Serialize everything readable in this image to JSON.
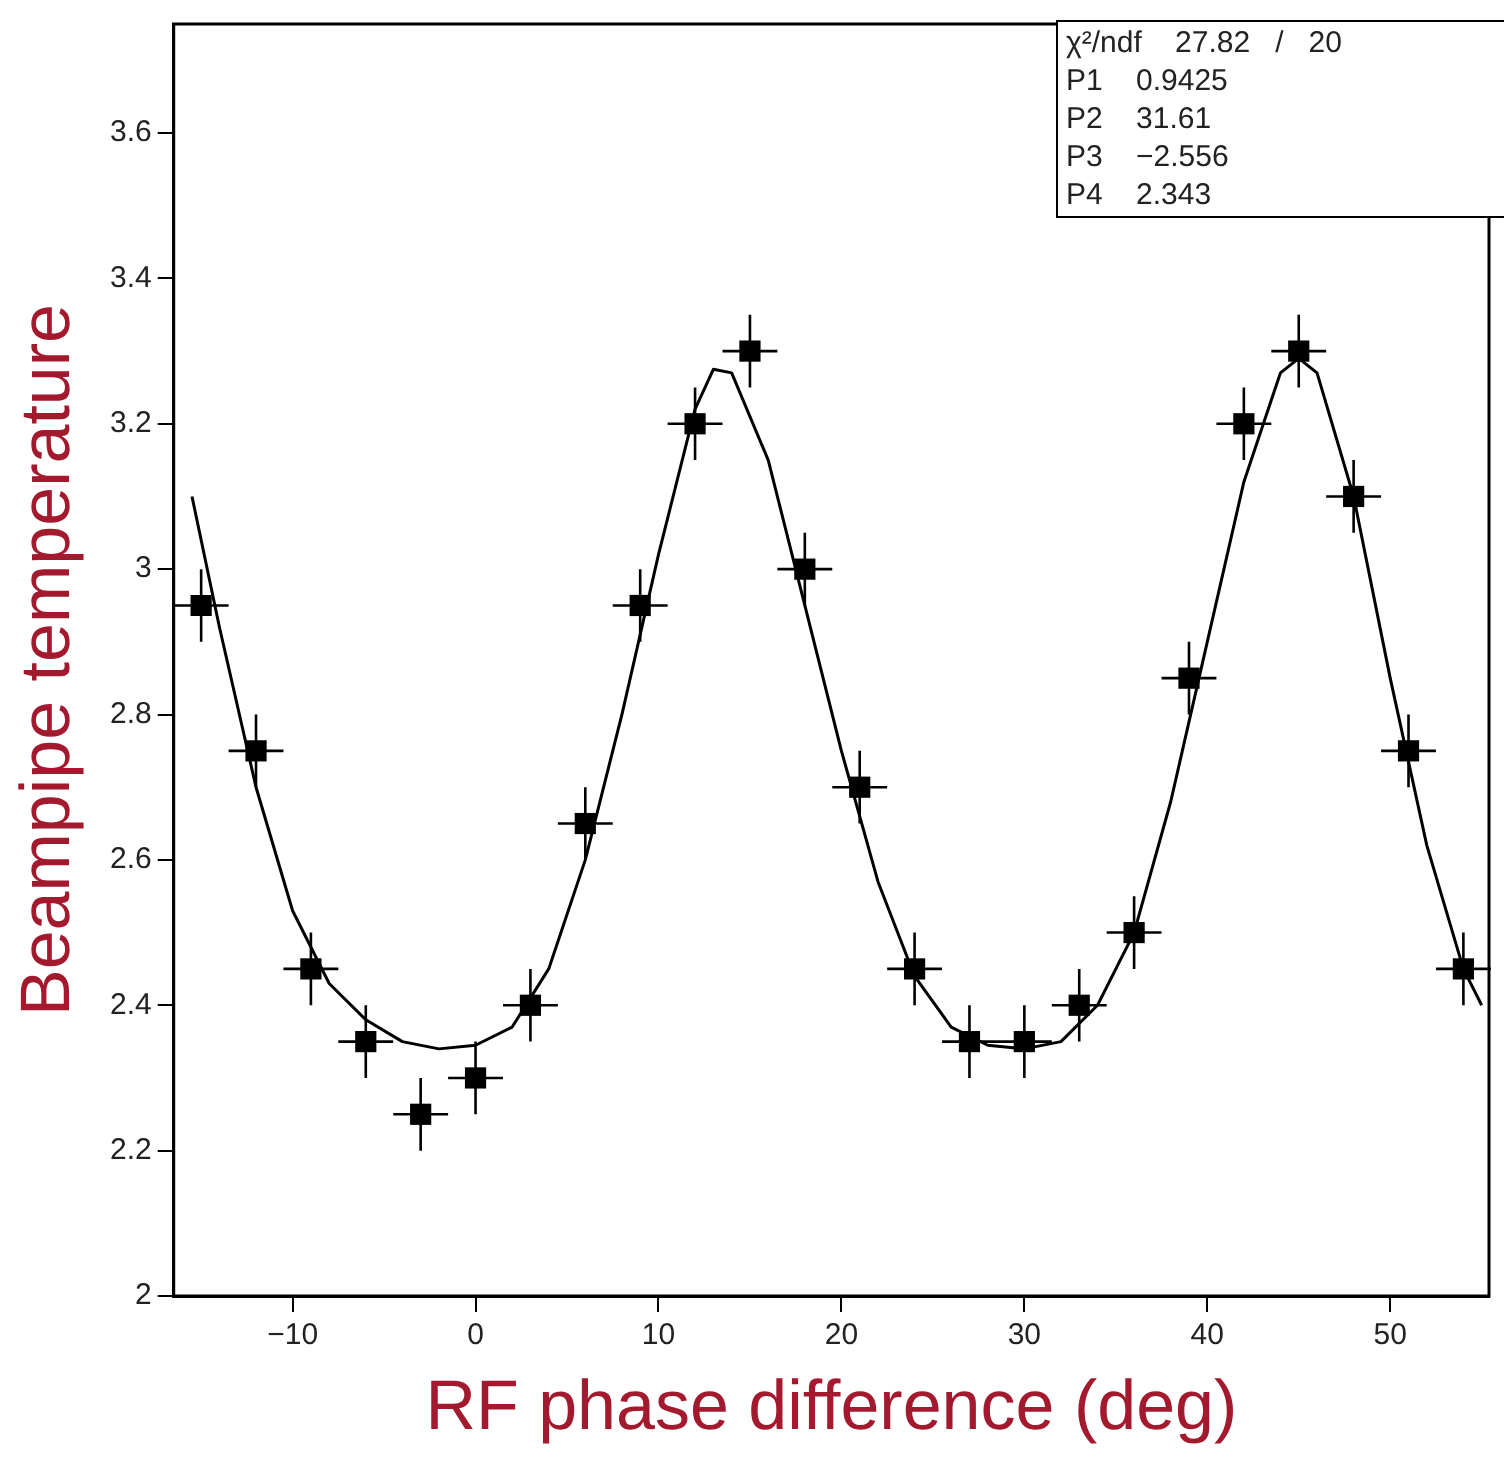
{
  "chart_data": {
    "type": "scatter",
    "xlabel": "RF phase difference (deg)",
    "ylabel": "Beampipe temperature",
    "xlim": [
      -16.5,
      55.4
    ],
    "xticks": [
      -10,
      0,
      10,
      20,
      30,
      40,
      50
    ],
    "ylim": [
      2,
      3.75
    ],
    "yticks": [
      2,
      2.2,
      2.4,
      2.6,
      2.8,
      3,
      3.2,
      3.4,
      3.6
    ],
    "grid": false,
    "legend": false,
    "annotations": [
      "χ²/ndf    27.82   /   20",
      "P1    0.9425",
      "P2    31.61",
      "P3    −2.556",
      "P4    2.343"
    ],
    "series": [
      {
        "type": "scatter",
        "marker": "square",
        "color": "#000000",
        "x": [
          -15,
          -12,
          -9,
          -6,
          -3,
          0,
          3,
          6,
          9,
          12,
          15,
          18,
          21,
          24,
          27,
          30,
          33,
          36,
          39,
          42,
          45,
          48,
          51,
          54
        ],
        "values": [
          2.95,
          2.75,
          2.45,
          2.35,
          2.25,
          2.3,
          2.4,
          2.65,
          2.95,
          3.2,
          3.3,
          3.0,
          2.7,
          2.45,
          2.35,
          2.35,
          2.4,
          2.5,
          2.85,
          3.2,
          3.3,
          3.1,
          2.75,
          2.45
        ],
        "errors": [
          0.05,
          0.05,
          0.05,
          0.05,
          0.05,
          0.05,
          0.05,
          0.05,
          0.05,
          0.05,
          0.05,
          0.05,
          0.05,
          0.05,
          0.05,
          0.05,
          0.05,
          0.05,
          0.05,
          0.05,
          0.05,
          0.05,
          0.05,
          0.05
        ],
        "xerrors": [
          1.5,
          1.5,
          1.5,
          1.5,
          1.5,
          1.5,
          1.5,
          1.5,
          1.5,
          1.5,
          1.5,
          1.5,
          1.5,
          1.5,
          1.5,
          1.5,
          1.5,
          1.5,
          1.5,
          1.5,
          1.5,
          1.5,
          1.5,
          1.5
        ]
      },
      {
        "type": "line",
        "marker": "none",
        "line_style": "solid",
        "color": "#000000",
        "x": [
          -15.5,
          -14,
          -12,
          -10,
          -8,
          -6,
          -4,
          -2,
          0,
          2,
          4,
          6,
          8,
          10,
          12,
          13,
          14,
          16,
          18,
          20,
          22,
          24,
          26,
          28,
          30,
          32,
          34,
          36,
          38,
          40,
          42,
          44,
          45,
          46,
          48,
          50,
          52,
          54,
          55
        ],
        "values": [
          3.1,
          2.92,
          2.7,
          2.53,
          2.43,
          2.38,
          2.35,
          2.34,
          2.345,
          2.37,
          2.45,
          2.6,
          2.8,
          3.02,
          3.22,
          3.275,
          3.27,
          3.15,
          2.95,
          2.75,
          2.57,
          2.44,
          2.37,
          2.345,
          2.34,
          2.35,
          2.4,
          2.5,
          2.68,
          2.9,
          3.12,
          3.27,
          3.29,
          3.27,
          3.1,
          2.85,
          2.62,
          2.45,
          2.4
        ]
      }
    ]
  }
}
